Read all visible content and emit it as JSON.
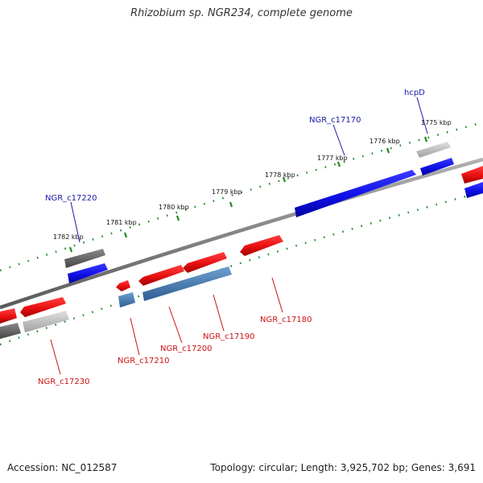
{
  "title": "Rhizobium sp. NGR234, complete genome",
  "footer": {
    "accession": "Accession: NC_012587",
    "topology": "Topology: circular; Length: 3,925,702 bp; Genes: 3,691"
  },
  "colors": {
    "backbone": "#8a8a8a",
    "tick": "#1f8a1f",
    "forward_gene": "#e01515",
    "reverse_gene": "#1515e0",
    "pseudo_gray": "#707070",
    "light_gray": "#c4c4c4",
    "steel_blue": "#4a7fb5",
    "label_blue": "#1a1aa8",
    "label_red": "#cc1111"
  },
  "kbp_ticks": [
    {
      "kbp": 1775,
      "label": "1775 kbp"
    },
    {
      "kbp": 1776,
      "label": "1776 kbp"
    },
    {
      "kbp": 1777,
      "label": "1777 kbp"
    },
    {
      "kbp": 1778,
      "label": "1778 kbp"
    },
    {
      "kbp": 1779,
      "label": "1779 kbp"
    },
    {
      "kbp": 1780,
      "label": "1780 kbp"
    },
    {
      "kbp": 1781,
      "label": "1781 kbp"
    },
    {
      "kbp": 1782,
      "label": "1782 kbp"
    }
  ],
  "gene_labels": [
    {
      "name": "hcpD",
      "color": "blue"
    },
    {
      "name": "NGR_c17170",
      "color": "blue"
    },
    {
      "name": "NGR_c17220",
      "color": "blue"
    },
    {
      "name": "NGR_c17180",
      "color": "red"
    },
    {
      "name": "NGR_c17190",
      "color": "red"
    },
    {
      "name": "NGR_c17200",
      "color": "red"
    },
    {
      "name": "NGR_c17210",
      "color": "red"
    },
    {
      "name": "NGR_c17230",
      "color": "red"
    }
  ]
}
